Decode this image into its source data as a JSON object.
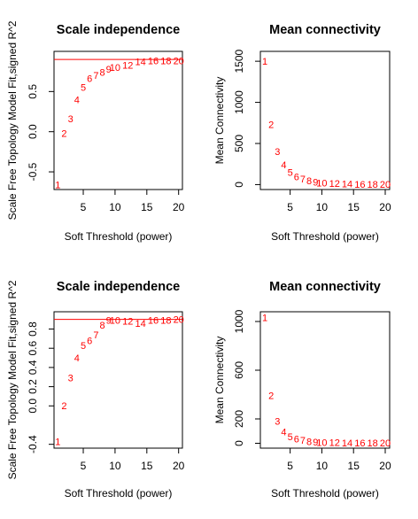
{
  "chart_data": [
    {
      "type": "scatter",
      "title": "Scale independence",
      "xlabel": "Soft Threshold (power)",
      "ylabel": "Scale Free Topology Model Fit,signed R^2",
      "xlim": [
        0.4,
        20.6
      ],
      "ylim": [
        -0.72,
        1.0
      ],
      "xticks": [
        "5",
        "10",
        "15",
        "20"
      ],
      "yticks": [
        "-0.5",
        "0.0",
        "0.5"
      ],
      "hline": 0.9,
      "colors": {
        "points": "#ff0000",
        "hline": "#ff0000",
        "axes": "#000000"
      },
      "points": [
        {
          "label": "1",
          "x": 1,
          "y": -0.66
        },
        {
          "label": "2",
          "x": 2,
          "y": -0.02
        },
        {
          "label": "3",
          "x": 3,
          "y": 0.16
        },
        {
          "label": "4",
          "x": 4,
          "y": 0.4
        },
        {
          "label": "5",
          "x": 5,
          "y": 0.55
        },
        {
          "label": "6",
          "x": 6,
          "y": 0.66
        },
        {
          "label": "7",
          "x": 7,
          "y": 0.7
        },
        {
          "label": "8",
          "x": 8,
          "y": 0.74
        },
        {
          "label": "9",
          "x": 9,
          "y": 0.78
        },
        {
          "label": "10",
          "x": 10,
          "y": 0.8
        },
        {
          "label": "12",
          "x": 12,
          "y": 0.83
        },
        {
          "label": "14",
          "x": 14,
          "y": 0.87
        },
        {
          "label": "16",
          "x": 16,
          "y": 0.88
        },
        {
          "label": "18",
          "x": 18,
          "y": 0.88
        },
        {
          "label": "20",
          "x": 20,
          "y": 0.88
        }
      ]
    },
    {
      "type": "scatter",
      "title": "Mean connectivity",
      "xlabel": "Soft Threshold (power)",
      "ylabel": "Mean Connectivity",
      "xlim": [
        0.3,
        20.7
      ],
      "ylim": [
        -60,
        1620
      ],
      "xticks": [
        "5",
        "10",
        "15",
        "20"
      ],
      "yticks": [
        "0",
        "500",
        "1000",
        "1500"
      ],
      "colors": {
        "points": "#ff0000",
        "axes": "#000000"
      },
      "points": [
        {
          "label": "1",
          "x": 1,
          "y": 1500
        },
        {
          "label": "2",
          "x": 2,
          "y": 730
        },
        {
          "label": "3",
          "x": 3,
          "y": 400
        },
        {
          "label": "4",
          "x": 4,
          "y": 240
        },
        {
          "label": "5",
          "x": 5,
          "y": 150
        },
        {
          "label": "6",
          "x": 6,
          "y": 95
        },
        {
          "label": "7",
          "x": 7,
          "y": 65
        },
        {
          "label": "8",
          "x": 8,
          "y": 45
        },
        {
          "label": "9",
          "x": 9,
          "y": 30
        },
        {
          "label": "10",
          "x": 10,
          "y": 20
        },
        {
          "label": "12",
          "x": 12,
          "y": 12
        },
        {
          "label": "14",
          "x": 14,
          "y": 8
        },
        {
          "label": "16",
          "x": 16,
          "y": 5
        },
        {
          "label": "18",
          "x": 18,
          "y": 3
        },
        {
          "label": "20",
          "x": 20,
          "y": 2
        }
      ]
    },
    {
      "type": "scatter",
      "title": "Scale independence",
      "xlabel": "Soft Threshold (power)",
      "ylabel": "Scale Free Topology Model Fit,signed R^2",
      "xlim": [
        0.4,
        20.6
      ],
      "ylim": [
        -0.44,
        0.98
      ],
      "xticks": [
        "5",
        "10",
        "15",
        "20"
      ],
      "yticks": [
        "-0.4",
        "0.0",
        "0.2",
        "0.4",
        "0.6",
        "0.8"
      ],
      "hline": 0.9,
      "colors": {
        "points": "#ff0000",
        "hline": "#ff0000",
        "axes": "#000000"
      },
      "points": [
        {
          "label": "1",
          "x": 1,
          "y": -0.37
        },
        {
          "label": "2",
          "x": 2,
          "y": 0.0
        },
        {
          "label": "3",
          "x": 3,
          "y": 0.29
        },
        {
          "label": "4",
          "x": 4,
          "y": 0.5
        },
        {
          "label": "5",
          "x": 5,
          "y": 0.63
        },
        {
          "label": "6",
          "x": 6,
          "y": 0.68
        },
        {
          "label": "7",
          "x": 7,
          "y": 0.74
        },
        {
          "label": "8",
          "x": 8,
          "y": 0.84
        },
        {
          "label": "9",
          "x": 9,
          "y": 0.89
        },
        {
          "label": "10",
          "x": 10,
          "y": 0.89
        },
        {
          "label": "12",
          "x": 12,
          "y": 0.88
        },
        {
          "label": "14",
          "x": 14,
          "y": 0.86
        },
        {
          "label": "16",
          "x": 16,
          "y": 0.89
        },
        {
          "label": "18",
          "x": 18,
          "y": 0.89
        },
        {
          "label": "20",
          "x": 20,
          "y": 0.9
        }
      ]
    },
    {
      "type": "scatter",
      "title": "Mean connectivity",
      "xlabel": "Soft Threshold (power)",
      "ylabel": "Mean Connectivity",
      "xlim": [
        0.3,
        20.7
      ],
      "ylim": [
        -40,
        1080
      ],
      "xticks": [
        "5",
        "10",
        "15",
        "20"
      ],
      "yticks": [
        "0",
        "200",
        "600",
        "1000"
      ],
      "colors": {
        "points": "#ff0000",
        "axes": "#000000"
      },
      "points": [
        {
          "label": "1",
          "x": 1,
          "y": 1030
        },
        {
          "label": "2",
          "x": 2,
          "y": 390
        },
        {
          "label": "3",
          "x": 3,
          "y": 180
        },
        {
          "label": "4",
          "x": 4,
          "y": 95
        },
        {
          "label": "5",
          "x": 5,
          "y": 55
        },
        {
          "label": "6",
          "x": 6,
          "y": 35
        },
        {
          "label": "7",
          "x": 7,
          "y": 25
        },
        {
          "label": "8",
          "x": 8,
          "y": 15
        },
        {
          "label": "9",
          "x": 9,
          "y": 10
        },
        {
          "label": "10",
          "x": 10,
          "y": 7
        },
        {
          "label": "12",
          "x": 12,
          "y": 5
        },
        {
          "label": "14",
          "x": 14,
          "y": 3
        },
        {
          "label": "16",
          "x": 16,
          "y": 2
        },
        {
          "label": "18",
          "x": 18,
          "y": 1
        },
        {
          "label": "20",
          "x": 20,
          "y": 1
        }
      ]
    }
  ]
}
